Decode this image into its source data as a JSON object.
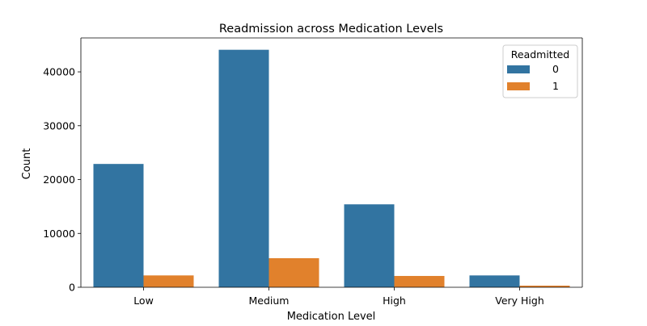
{
  "chart_data": {
    "type": "bar",
    "title": "Readmission across Medication Levels",
    "xlabel": "Medication Level",
    "ylabel": "Count",
    "categories": [
      "Low",
      "Medium",
      "High",
      "Very High"
    ],
    "series": [
      {
        "name": "0",
        "color": "#3274a1",
        "values": [
          22900,
          44100,
          15400,
          2200
        ]
      },
      {
        "name": "1",
        "color": "#e1812c",
        "values": [
          2200,
          5400,
          2100,
          300
        ]
      }
    ],
    "ylim": [
      0,
      46300
    ],
    "yticks": [
      0,
      10000,
      20000,
      30000,
      40000
    ],
    "legend": {
      "title": "Readmitted",
      "position": "top-right"
    },
    "grid": false
  }
}
